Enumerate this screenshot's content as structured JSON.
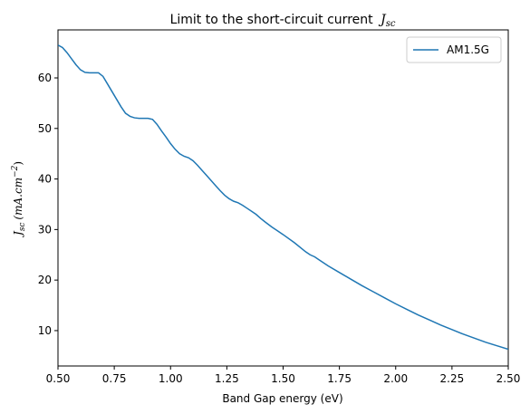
{
  "chart_data": {
    "type": "line",
    "title": "Limit to the short-circuit current",
    "title_math": "J",
    "title_math_sub": "sc",
    "xlabel": "Band Gap energy (eV)",
    "ylabel_math": "J",
    "ylabel_math_sub": "sc",
    "ylabel_units": "(mA.cm",
    "ylabel_units_sup": "−2",
    "ylabel_units_close": ")",
    "xlim": [
      0.5,
      2.5
    ],
    "ylim": [
      3.0,
      69.5
    ],
    "xticks": [
      0.5,
      0.75,
      1.0,
      1.25,
      1.5,
      1.75,
      2.0,
      2.25,
      2.5
    ],
    "xtick_labels": [
      "0.50",
      "0.75",
      "1.00",
      "1.25",
      "1.50",
      "1.75",
      "2.00",
      "2.25",
      "2.50"
    ],
    "yticks": [
      10,
      20,
      30,
      40,
      50,
      60
    ],
    "ytick_labels": [
      "10",
      "20",
      "30",
      "40",
      "50",
      "60"
    ],
    "grid": false,
    "legend_position": "top-right",
    "series": [
      {
        "name": "AM1.5G",
        "color": "#1f77b4",
        "x": [
          0.5,
          0.52,
          0.54,
          0.56,
          0.58,
          0.6,
          0.62,
          0.64,
          0.66,
          0.68,
          0.7,
          0.72,
          0.74,
          0.76,
          0.78,
          0.8,
          0.82,
          0.84,
          0.86,
          0.88,
          0.9,
          0.92,
          0.94,
          0.96,
          0.98,
          1.0,
          1.02,
          1.04,
          1.06,
          1.08,
          1.1,
          1.12,
          1.14,
          1.16,
          1.18,
          1.2,
          1.22,
          1.24,
          1.26,
          1.28,
          1.3,
          1.32,
          1.34,
          1.36,
          1.38,
          1.4,
          1.42,
          1.45,
          1.5,
          1.55,
          1.6,
          1.62,
          1.64,
          1.66,
          1.7,
          1.75,
          1.8,
          1.85,
          1.9,
          1.95,
          2.0,
          2.05,
          2.1,
          2.15,
          2.2,
          2.25,
          2.3,
          2.35,
          2.4,
          2.45,
          2.5
        ],
        "y": [
          66.5,
          66.0,
          65.0,
          63.8,
          62.6,
          61.6,
          61.1,
          61.0,
          61.0,
          61.0,
          60.3,
          58.8,
          57.3,
          55.8,
          54.3,
          53.0,
          52.4,
          52.1,
          52.0,
          52.0,
          52.0,
          51.8,
          50.8,
          49.5,
          48.3,
          47.0,
          45.9,
          45.0,
          44.5,
          44.2,
          43.6,
          42.7,
          41.7,
          40.7,
          39.7,
          38.7,
          37.7,
          36.8,
          36.1,
          35.6,
          35.3,
          34.8,
          34.2,
          33.6,
          33.0,
          32.2,
          31.5,
          30.5,
          29.0,
          27.4,
          25.6,
          25.0,
          24.6,
          24.0,
          22.8,
          21.5,
          20.2,
          18.9,
          17.7,
          16.5,
          15.3,
          14.2,
          13.1,
          12.1,
          11.1,
          10.2,
          9.3,
          8.5,
          7.7,
          7.0,
          6.3
        ]
      }
    ]
  }
}
